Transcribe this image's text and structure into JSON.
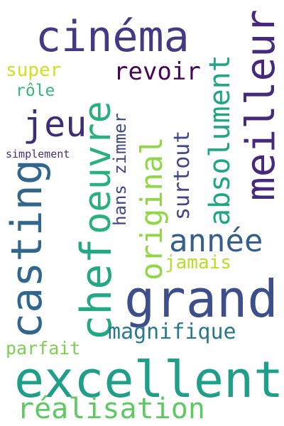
{
  "words": [
    {
      "text": "cinéma",
      "color": "#443a83"
    },
    {
      "text": "meilleur",
      "color": "#46287c"
    },
    {
      "text": "absolument",
      "color": "#21a685"
    },
    {
      "text": "oeuvre",
      "color": "#2ab07f"
    },
    {
      "text": "revoir",
      "color": "#450559"
    },
    {
      "text": "super",
      "color": "#d0e11c"
    },
    {
      "text": "rôle",
      "color": "#35b779"
    },
    {
      "text": "jeu",
      "color": "#3b2e76"
    },
    {
      "text": "original",
      "color": "#8fd744"
    },
    {
      "text": "surtout",
      "color": "#404688"
    },
    {
      "text": "hans zimmer",
      "color": "#3e4989"
    },
    {
      "text": "simplement",
      "color": "#472c7a"
    },
    {
      "text": "casting",
      "color": "#31668e"
    },
    {
      "text": "chef",
      "color": "#22a884"
    },
    {
      "text": "année",
      "color": "#355f8d"
    },
    {
      "text": "jamais",
      "color": "#b5de2b"
    },
    {
      "text": "grand",
      "color": "#3c4f8a"
    },
    {
      "text": "magnifique",
      "color": "#2a788e"
    },
    {
      "text": "parfait",
      "color": "#7ad151"
    },
    {
      "text": "excellent",
      "color": "#1f9e89"
    },
    {
      "text": "réalisation",
      "color": "#5ec962"
    }
  ]
}
